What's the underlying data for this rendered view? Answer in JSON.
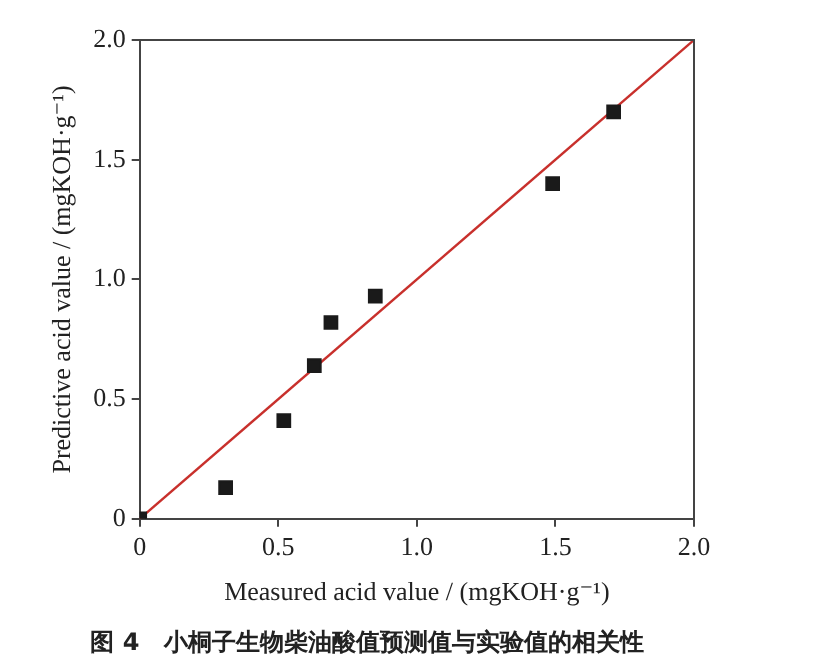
{
  "chart_data": {
    "type": "scatter",
    "title": "图 4　小桐子生物柴油酸值预测值与实验值的相关性",
    "xlabel": "Measured acid value / (mgKOH·g⁻¹)",
    "ylabel": "Predictive acid value / (mgKOH·g⁻¹)",
    "series": [
      {
        "color": "#1a1a1a",
        "marker": "square",
        "x": [
          0,
          0.31,
          0.52,
          0.63,
          0.69,
          0.85,
          1.49,
          1.71
        ],
        "values": [
          0,
          0.13,
          0.41,
          0.64,
          0.82,
          0.93,
          1.4,
          1.7
        ]
      },
      {
        "type": "line",
        "color": "#c8302c",
        "marker": "none",
        "line_style": "solid",
        "x": [
          0,
          2
        ],
        "values": [
          0,
          2
        ]
      }
    ],
    "xlim": [
      0,
      2
    ],
    "ylim": [
      0,
      2
    ],
    "xticks": [
      0,
      0.5,
      {
        "value": 1,
        "label": "1.0"
      },
      1.5,
      {
        "value": 2,
        "label": "2.0"
      }
    ],
    "yticks": [
      0,
      0.5,
      {
        "value": 1,
        "label": "1.0"
      },
      1.5,
      {
        "value": 2,
        "label": "2.0"
      }
    ],
    "grid": false,
    "legend": false
  }
}
